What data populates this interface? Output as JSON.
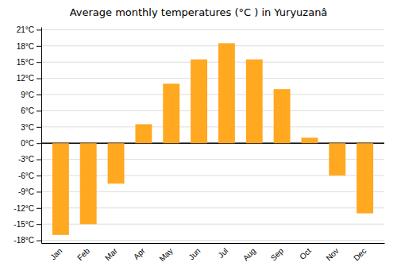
{
  "chart_data": {
    "type": "bar",
    "title": "Average monthly temperatures (°C ) in Yuryuzanâ",
    "categories": [
      "Jan",
      "Feb",
      "Mar",
      "Apr",
      "May",
      "Jun",
      "Jul",
      "Aug",
      "Sep",
      "Oct",
      "Nov",
      "Dec"
    ],
    "values": [
      -17,
      -15,
      -7.5,
      3.5,
      11,
      15.5,
      18.5,
      15.5,
      10,
      1,
      -6,
      -13
    ],
    "color": "#FFA820",
    "ylim": [
      -18.5,
      21.5
    ],
    "yticks": [
      {
        "value": -18,
        "label": "-18°C"
      },
      {
        "value": -15,
        "label": "-15°C"
      },
      {
        "value": -12,
        "label": "-12°C"
      },
      {
        "value": -9,
        "label": "-9°C"
      },
      {
        "value": -6,
        "label": "-6°C"
      },
      {
        "value": -3,
        "label": "-3°C"
      },
      {
        "value": 0,
        "label": "0°C"
      },
      {
        "value": 3,
        "label": "3°C"
      },
      {
        "value": 6,
        "label": "6°C"
      },
      {
        "value": 9,
        "label": "9°C"
      },
      {
        "value": 12,
        "label": "12°C"
      },
      {
        "value": 15,
        "label": "15°C"
      },
      {
        "value": 18,
        "label": "18°C"
      },
      {
        "value": 21,
        "label": "21°C"
      }
    ],
    "grid": true
  }
}
